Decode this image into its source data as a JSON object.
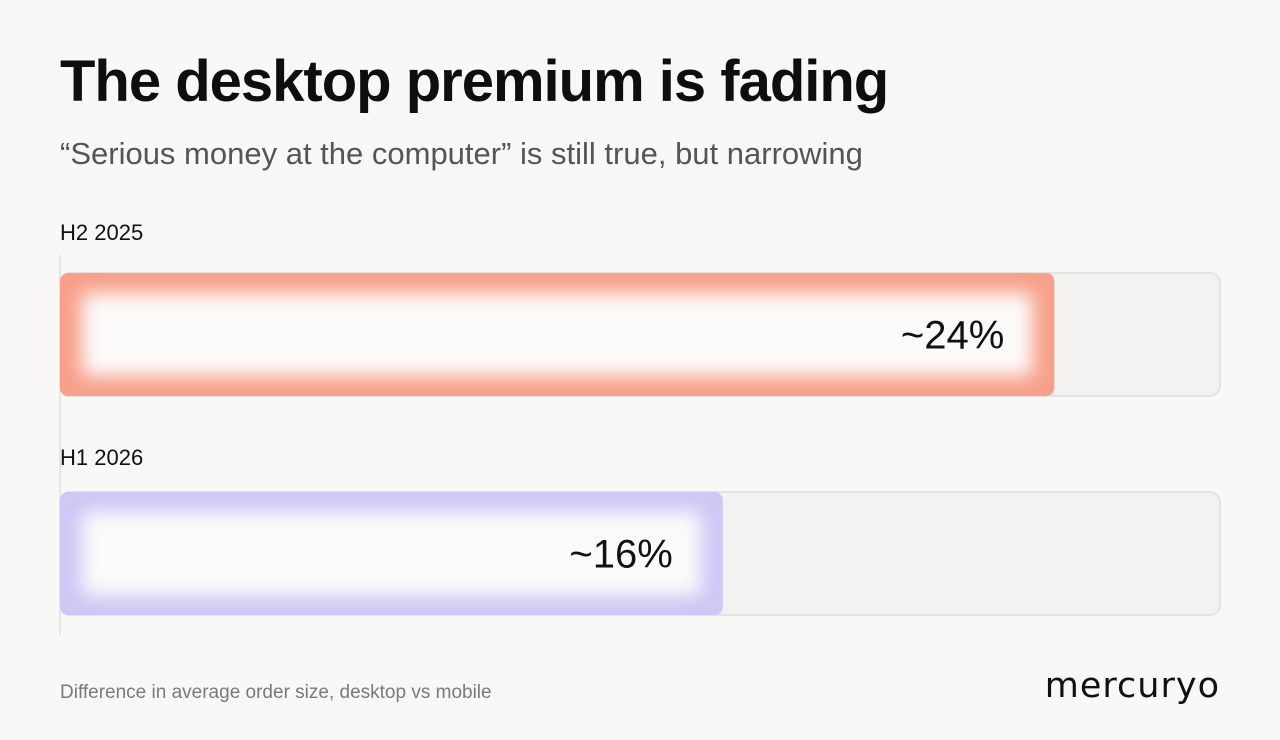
{
  "title": "The desktop premium is fading",
  "subtitle": "“Serious money at the computer” is still true, but narrowing",
  "footnote": "Difference in average order size, desktop vs mobile",
  "logo": "mercuryo",
  "colors": {
    "background": "#f9f8f6",
    "h2_2025": "#f7a08a",
    "h1_2026": "#cdc8f5",
    "track": "#e4e3e1"
  },
  "chart_data": {
    "type": "bar",
    "orientation": "horizontal",
    "categories": [
      "H2 2025",
      "H1 2026"
    ],
    "values": [
      24,
      16
    ],
    "value_labels": [
      "~24%",
      "~16%"
    ],
    "xlim": [
      0,
      28
    ],
    "title": "The desktop premium is fading",
    "subtitle": "“Serious money at the computer” is still true, but narrowing",
    "xlabel": "",
    "ylabel": "",
    "grid": false,
    "legend": "none"
  }
}
